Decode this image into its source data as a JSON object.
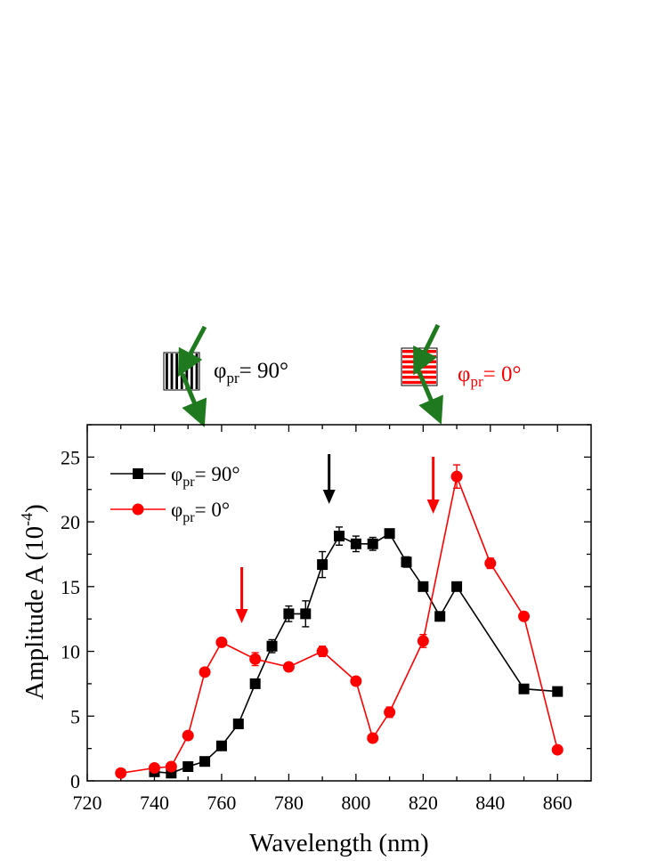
{
  "chart_data": {
    "type": "line",
    "title": "",
    "xlabel": "Wavelength (nm)",
    "ylabel_main": "Amplitude A (10",
    "ylabel_exp": "-4",
    "ylabel_close": ")",
    "xlim": [
      720,
      870
    ],
    "ylim": [
      0,
      27.5
    ],
    "xticks": [
      720,
      740,
      760,
      780,
      800,
      820,
      840,
      860
    ],
    "yticks": [
      0,
      5,
      10,
      15,
      20,
      25
    ],
    "legend_position": "top-left",
    "series": [
      {
        "name": "φpr= 90°",
        "label_main": "φ",
        "label_sub": "pr",
        "label_rest": "= 90°",
        "color": "#000000",
        "marker": "square",
        "x": [
          740,
          745,
          750,
          755,
          760,
          765,
          770,
          775,
          780,
          785,
          790,
          795,
          800,
          805,
          810,
          815,
          820,
          825,
          830,
          850,
          860
        ],
        "y": [
          0.7,
          0.6,
          1.1,
          1.5,
          2.7,
          4.4,
          7.5,
          10.4,
          12.9,
          12.9,
          16.7,
          18.9,
          18.3,
          18.3,
          19.1,
          16.9,
          15.0,
          12.7,
          15.0,
          7.1,
          6.9
        ],
        "err": [
          0,
          0,
          0,
          0,
          0,
          0,
          0,
          0.5,
          0.6,
          1.0,
          1.0,
          0.7,
          0.6,
          0.5,
          0,
          0.4,
          0,
          0,
          0,
          0,
          0
        ]
      },
      {
        "name": "φpr= 0°",
        "label_main": "φ",
        "label_sub": "pr",
        "label_rest": "= 0°",
        "color": "#ff0000",
        "marker": "circle",
        "x": [
          730,
          740,
          745,
          750,
          755,
          760,
          770,
          780,
          790,
          800,
          805,
          810,
          820,
          830,
          840,
          850,
          860
        ],
        "y": [
          0.6,
          1.0,
          1.1,
          3.5,
          8.4,
          10.7,
          9.4,
          8.8,
          10.0,
          7.7,
          3.3,
          5.3,
          10.8,
          23.5,
          16.8,
          12.7,
          2.4
        ],
        "err": [
          0,
          0,
          0,
          0,
          0.3,
          0,
          0.5,
          0,
          0.4,
          0,
          0,
          0.4,
          0.5,
          0.9,
          0.4,
          0.3,
          0
        ]
      }
    ],
    "arrows": [
      {
        "x": 792,
        "color": "#000000"
      },
      {
        "x": 766,
        "color": "#ff0000"
      },
      {
        "x": 823,
        "color": "#ff0000"
      }
    ],
    "insets": [
      {
        "grating": "vertical",
        "label_main": "φ",
        "label_sub": "pr",
        "label_rest": "= 90°",
        "label_color": "#000000",
        "grating_color": "#000000",
        "probe_color": "#1f7a1f"
      },
      {
        "grating": "horizontal",
        "label_main": "φ",
        "label_sub": "pr",
        "label_rest": "= 0°",
        "label_color": "#ff0000",
        "grating_color": "#ff0000",
        "probe_color": "#1f7a1f"
      }
    ]
  }
}
